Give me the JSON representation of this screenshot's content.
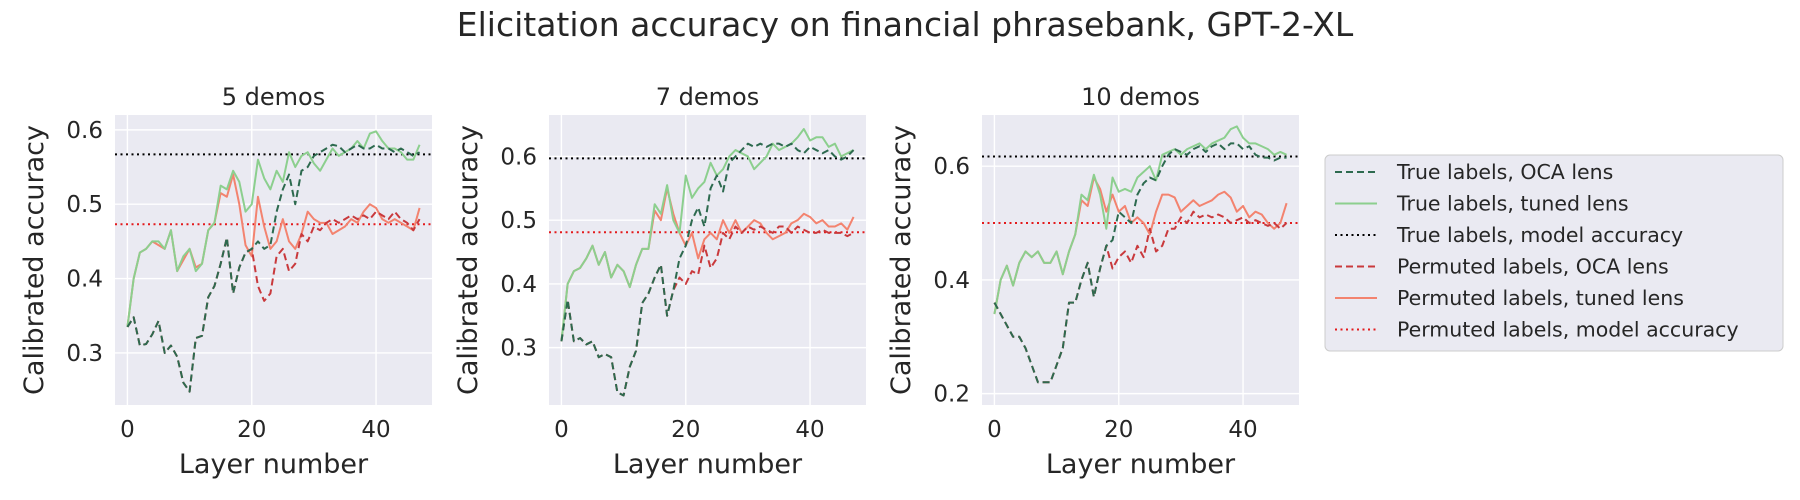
{
  "figure": {
    "title": "Elicitation accuracy on financial phrasebank, GPT-2-XL"
  },
  "legend": {
    "placement": "right",
    "items": [
      {
        "label": "True labels, OCA lens",
        "color": "#2d6a4f",
        "dash": "dashed"
      },
      {
        "label": "True labels, tuned lens",
        "color": "#8ccf8e",
        "dash": "solid"
      },
      {
        "label": "True labels, model accuracy",
        "color": "#000000",
        "dash": "dotted"
      },
      {
        "label": "Permuted labels, OCA lens",
        "color": "#c9393c",
        "dash": "dashed"
      },
      {
        "label": "Permuted labels, tuned lens",
        "color": "#f3836f",
        "dash": "solid"
      },
      {
        "label": "Permuted labels, model accuracy",
        "color": "#e31a1c",
        "dash": "dotted"
      }
    ]
  },
  "chart_data": [
    {
      "type": "line",
      "title": "5 demos",
      "xlabel": "Layer number",
      "ylabel": "Calibrated accuracy",
      "xlim": [
        -2,
        49
      ],
      "ylim": [
        0.23,
        0.62
      ],
      "xticks": [
        0,
        20,
        40
      ],
      "yticks": [
        0.3,
        0.4,
        0.5,
        0.6
      ],
      "ytick_labels": [
        "0.3",
        "0.4",
        "0.5",
        "0.6"
      ],
      "grid": true,
      "hlines": {
        "true_model_accuracy": 0.567,
        "permuted_model_accuracy": 0.473
      },
      "series": [
        {
          "name": "True labels, OCA lens",
          "values": [
            0.335,
            0.348,
            0.31,
            0.312,
            0.325,
            0.343,
            0.3,
            0.31,
            0.295,
            0.26,
            0.248,
            0.32,
            0.323,
            0.375,
            0.39,
            0.42,
            0.455,
            0.38,
            0.415,
            0.435,
            0.44,
            0.45,
            0.44,
            0.445,
            0.49,
            0.52,
            0.54,
            0.5,
            0.545,
            0.55,
            0.565,
            0.57,
            0.575,
            0.58,
            0.578,
            0.57,
            0.575,
            0.58,
            0.575,
            0.575,
            0.58,
            0.575,
            0.575,
            0.57,
            0.575,
            0.57,
            0.565,
            0.57
          ]
        },
        {
          "name": "True labels, tuned lens",
          "values": [
            0.335,
            0.4,
            0.435,
            0.44,
            0.45,
            0.45,
            0.44,
            0.465,
            0.41,
            0.43,
            0.44,
            0.41,
            0.42,
            0.465,
            0.475,
            0.525,
            0.52,
            0.545,
            0.53,
            0.49,
            0.5,
            0.56,
            0.535,
            0.52,
            0.545,
            0.53,
            0.57,
            0.55,
            0.565,
            0.57,
            0.555,
            0.545,
            0.56,
            0.575,
            0.565,
            0.57,
            0.575,
            0.585,
            0.575,
            0.595,
            0.598,
            0.585,
            0.575,
            0.575,
            0.57,
            0.56,
            0.56,
            0.58
          ]
        },
        {
          "name": "Permuted labels, OCA lens",
          "values": [
            0.335,
            0.348,
            0.31,
            0.312,
            0.325,
            0.343,
            0.3,
            0.31,
            0.295,
            0.26,
            0.248,
            0.32,
            0.323,
            0.375,
            0.39,
            0.42,
            0.455,
            0.38,
            0.415,
            0.435,
            0.44,
            0.39,
            0.37,
            0.38,
            0.43,
            0.44,
            0.41,
            0.42,
            0.46,
            0.45,
            0.47,
            0.465,
            0.475,
            0.48,
            0.475,
            0.48,
            0.485,
            0.48,
            0.485,
            0.48,
            0.49,
            0.485,
            0.48,
            0.49,
            0.48,
            0.475,
            0.465,
            0.48
          ]
        },
        {
          "name": "Permuted labels, tuned lens",
          "values": [
            0.335,
            0.4,
            0.435,
            0.44,
            0.45,
            0.445,
            0.44,
            0.465,
            0.41,
            0.425,
            0.44,
            0.415,
            0.42,
            0.465,
            0.475,
            0.515,
            0.51,
            0.54,
            0.5,
            0.445,
            0.43,
            0.51,
            0.47,
            0.44,
            0.45,
            0.48,
            0.45,
            0.44,
            0.46,
            0.49,
            0.48,
            0.475,
            0.475,
            0.46,
            0.465,
            0.47,
            0.48,
            0.475,
            0.49,
            0.5,
            0.495,
            0.48,
            0.475,
            0.48,
            0.475,
            0.47,
            0.465,
            0.495
          ]
        }
      ]
    },
    {
      "type": "line",
      "title": "7 demos",
      "xlabel": "Layer number",
      "ylabel": "Calibrated accuracy",
      "xlim": [
        -2,
        49
      ],
      "ylim": [
        0.21,
        0.665
      ],
      "xticks": [
        0,
        20,
        40
      ],
      "yticks": [
        0.3,
        0.4,
        0.5,
        0.6
      ],
      "ytick_labels": [
        "0.3",
        "0.4",
        "0.5",
        "0.6"
      ],
      "grid": true,
      "hlines": {
        "true_model_accuracy": 0.597,
        "permuted_model_accuracy": 0.481
      },
      "series": [
        {
          "name": "True labels, OCA lens",
          "values": [
            0.31,
            0.375,
            0.31,
            0.315,
            0.305,
            0.31,
            0.285,
            0.29,
            0.285,
            0.23,
            0.225,
            0.27,
            0.295,
            0.37,
            0.385,
            0.41,
            0.43,
            0.35,
            0.39,
            0.44,
            0.46,
            0.5,
            0.52,
            0.49,
            0.55,
            0.57,
            0.545,
            0.59,
            0.6,
            0.61,
            0.62,
            0.615,
            0.62,
            0.615,
            0.62,
            0.62,
            0.615,
            0.62,
            0.61,
            0.605,
            0.615,
            0.61,
            0.605,
            0.61,
            0.6,
            0.595,
            0.6,
            0.61
          ]
        },
        {
          "name": "True labels, tuned lens",
          "values": [
            0.31,
            0.4,
            0.42,
            0.425,
            0.44,
            0.46,
            0.43,
            0.45,
            0.41,
            0.43,
            0.42,
            0.395,
            0.43,
            0.455,
            0.455,
            0.525,
            0.51,
            0.555,
            0.5,
            0.48,
            0.57,
            0.535,
            0.55,
            0.56,
            0.59,
            0.57,
            0.58,
            0.6,
            0.61,
            0.605,
            0.6,
            0.58,
            0.59,
            0.6,
            0.62,
            0.61,
            0.615,
            0.62,
            0.63,
            0.643,
            0.625,
            0.63,
            0.63,
            0.615,
            0.62,
            0.6,
            0.605,
            0.61
          ]
        },
        {
          "name": "Permuted labels, OCA lens",
          "values": [
            0.31,
            0.375,
            0.31,
            0.315,
            0.305,
            0.31,
            0.285,
            0.29,
            0.285,
            0.23,
            0.225,
            0.27,
            0.295,
            0.37,
            0.385,
            0.41,
            0.43,
            0.35,
            0.39,
            0.41,
            0.4,
            0.42,
            0.415,
            0.46,
            0.425,
            0.44,
            0.48,
            0.47,
            0.49,
            0.48,
            0.49,
            0.485,
            0.49,
            0.485,
            0.48,
            0.49,
            0.49,
            0.48,
            0.49,
            0.485,
            0.48,
            0.48,
            0.485,
            0.48,
            0.48,
            0.48,
            0.475,
            0.48
          ]
        },
        {
          "name": "Permuted labels, tuned lens",
          "values": [
            0.31,
            0.4,
            0.42,
            0.425,
            0.44,
            0.46,
            0.43,
            0.45,
            0.41,
            0.43,
            0.42,
            0.395,
            0.43,
            0.455,
            0.455,
            0.515,
            0.5,
            0.55,
            0.51,
            0.48,
            0.46,
            0.48,
            0.44,
            0.47,
            0.48,
            0.47,
            0.5,
            0.48,
            0.5,
            0.48,
            0.49,
            0.5,
            0.495,
            0.48,
            0.47,
            0.475,
            0.48,
            0.495,
            0.5,
            0.51,
            0.505,
            0.495,
            0.5,
            0.49,
            0.49,
            0.495,
            0.485,
            0.505
          ]
        }
      ]
    },
    {
      "type": "line",
      "title": "10 demos",
      "xlabel": "Layer number",
      "ylabel": "Calibrated accuracy",
      "xlim": [
        -2,
        49
      ],
      "ylim": [
        0.18,
        0.69
      ],
      "xticks": [
        0,
        20,
        40
      ],
      "yticks": [
        0.2,
        0.4,
        0.6
      ],
      "ytick_labels": [
        "0.2",
        "0.4",
        "0.6"
      ],
      "grid": true,
      "hlines": {
        "true_model_accuracy": 0.617,
        "permuted_model_accuracy": 0.5
      },
      "series": [
        {
          "name": "True labels, OCA lens",
          "values": [
            0.36,
            0.34,
            0.32,
            0.3,
            0.3,
            0.28,
            0.25,
            0.22,
            0.22,
            0.22,
            0.25,
            0.28,
            0.36,
            0.36,
            0.4,
            0.43,
            0.37,
            0.42,
            0.46,
            0.47,
            0.52,
            0.51,
            0.5,
            0.55,
            0.57,
            0.58,
            0.575,
            0.6,
            0.62,
            0.63,
            0.625,
            0.62,
            0.63,
            0.635,
            0.625,
            0.635,
            0.64,
            0.63,
            0.64,
            0.64,
            0.63,
            0.635,
            0.62,
            0.615,
            0.615,
            0.61,
            0.615,
            0.615
          ]
        },
        {
          "name": "True labels, tuned lens",
          "values": [
            0.34,
            0.4,
            0.425,
            0.39,
            0.43,
            0.45,
            0.44,
            0.45,
            0.43,
            0.43,
            0.45,
            0.41,
            0.45,
            0.48,
            0.55,
            0.54,
            0.585,
            0.55,
            0.49,
            0.58,
            0.555,
            0.56,
            0.555,
            0.58,
            0.59,
            0.6,
            0.575,
            0.62,
            0.625,
            0.63,
            0.62,
            0.63,
            0.635,
            0.64,
            0.63,
            0.64,
            0.645,
            0.65,
            0.665,
            0.67,
            0.65,
            0.64,
            0.64,
            0.635,
            0.63,
            0.62,
            0.625,
            0.62
          ]
        },
        {
          "name": "Permuted labels, OCA lens",
          "values": [
            0.36,
            0.34,
            0.32,
            0.3,
            0.3,
            0.28,
            0.25,
            0.22,
            0.22,
            0.22,
            0.25,
            0.28,
            0.36,
            0.36,
            0.4,
            0.43,
            0.37,
            0.42,
            0.46,
            0.42,
            0.44,
            0.45,
            0.43,
            0.46,
            0.44,
            0.49,
            0.45,
            0.46,
            0.49,
            0.49,
            0.51,
            0.5,
            0.52,
            0.51,
            0.515,
            0.51,
            0.515,
            0.51,
            0.5,
            0.505,
            0.51,
            0.5,
            0.505,
            0.5,
            0.495,
            0.5,
            0.49,
            0.5
          ]
        },
        {
          "name": "Permuted labels, tuned lens",
          "values": [
            0.34,
            0.4,
            0.425,
            0.39,
            0.43,
            0.45,
            0.44,
            0.45,
            0.43,
            0.43,
            0.45,
            0.41,
            0.45,
            0.48,
            0.54,
            0.53,
            0.58,
            0.56,
            0.52,
            0.55,
            0.52,
            0.53,
            0.5,
            0.51,
            0.5,
            0.48,
            0.52,
            0.55,
            0.55,
            0.545,
            0.52,
            0.53,
            0.54,
            0.53,
            0.535,
            0.54,
            0.55,
            0.555,
            0.545,
            0.52,
            0.53,
            0.51,
            0.52,
            0.515,
            0.5,
            0.49,
            0.5,
            0.535
          ]
        }
      ]
    }
  ]
}
